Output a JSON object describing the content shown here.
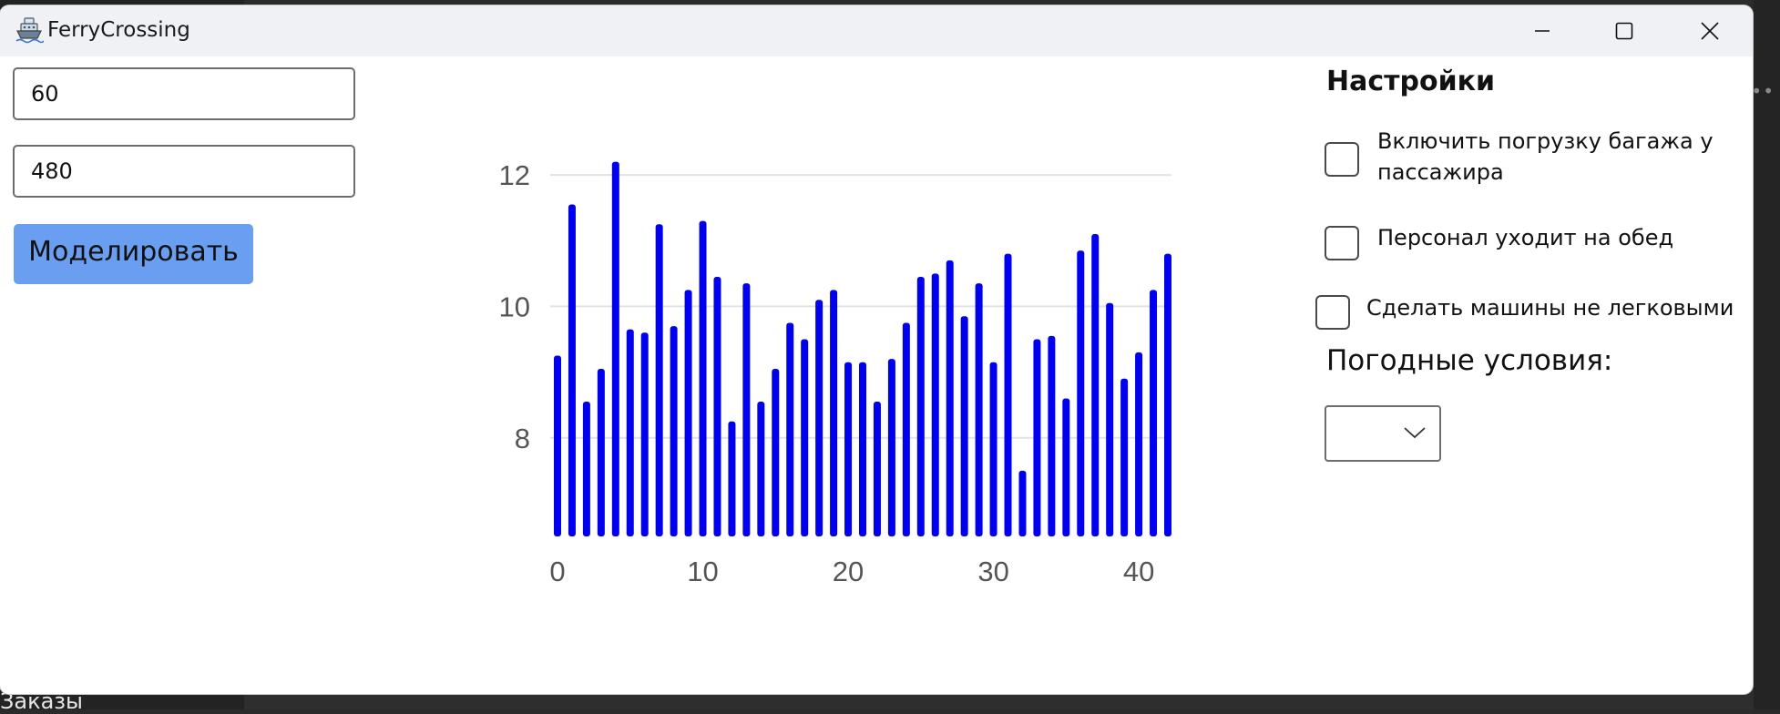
{
  "window": {
    "title": "FerryCrossing",
    "icon": "ship-icon"
  },
  "background": {
    "taskbar_label": "Заказы"
  },
  "inputs": {
    "field1_value": "60",
    "field2_value": "480"
  },
  "model_button_label": "Моделировать",
  "settings": {
    "title": "Настройки",
    "checkbox_baggage_label": "Включить погрузку багажа у пассажира",
    "checkbox_lunch_label": "Персонал уходит на обед",
    "checkbox_trucks_label": "Сделать машины не легковыми",
    "weather_label": "Погодные условия:",
    "weather_selected": ""
  },
  "colors": {
    "bar": "#0000ee",
    "button": "#6a9ef0",
    "titlebar": "#eff1f5"
  },
  "chart_data": {
    "type": "bar",
    "x": [
      0,
      1,
      2,
      3,
      4,
      5,
      6,
      7,
      8,
      9,
      10,
      11,
      12,
      13,
      14,
      15,
      16,
      17,
      18,
      19,
      20,
      21,
      22,
      23,
      24,
      25,
      26,
      27,
      28,
      29,
      30,
      31,
      32,
      33,
      34,
      35,
      36,
      37,
      38,
      39,
      40,
      41,
      42
    ],
    "values": [
      9.25,
      11.55,
      8.55,
      9.05,
      12.2,
      9.65,
      9.6,
      11.25,
      9.7,
      10.25,
      11.3,
      10.45,
      8.25,
      10.35,
      8.55,
      9.05,
      9.75,
      9.5,
      10.1,
      10.25,
      9.15,
      9.15,
      8.55,
      9.2,
      9.75,
      10.45,
      10.5,
      10.7,
      9.85,
      10.35,
      9.15,
      10.8,
      7.5,
      9.5,
      9.55,
      8.6,
      10.85,
      11.1,
      10.05,
      8.9,
      9.3,
      10.25,
      10.8
    ],
    "xticks": [
      "0",
      "10",
      "20",
      "30",
      "40"
    ],
    "yticks": [
      "8",
      "10",
      "12"
    ],
    "xlim": [
      0,
      42
    ],
    "ylim": [
      6.5,
      12.5
    ],
    "grid": true
  }
}
